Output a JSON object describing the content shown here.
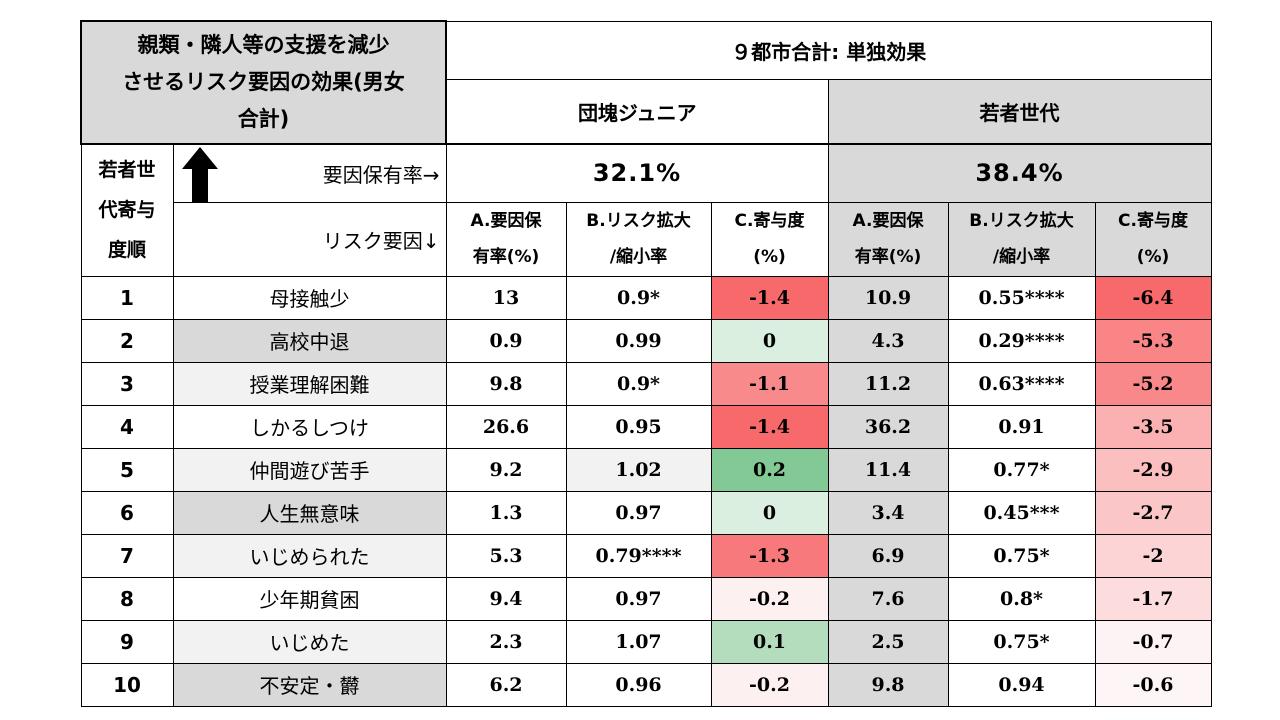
{
  "corner_title": [
    "親類・隣人等の支援を減少",
    "させるリスク要因の効果(男女",
    "合計)"
  ],
  "main_title": "９都市合計: 単独効果",
  "groups": [
    {
      "name": "団塊ジュニア",
      "rate": "32.1%"
    },
    {
      "name": "若者世代",
      "rate": "38.4%"
    }
  ],
  "side_label": [
    "若者世",
    "代寄与",
    "度順"
  ],
  "rate_label": "要因保有率→",
  "factor_label": "リスク要因↓",
  "col_headers": [
    {
      "a": "A.要因保",
      "b": "有率(%)"
    },
    {
      "a": "B.リスク拡大",
      "b": "/縮小率"
    },
    {
      "a": "C.寄与度",
      "b": "(%)"
    },
    {
      "a": "A.要因保",
      "b": "有率(%)"
    },
    {
      "a": "B.リスク拡大",
      "b": "/縮小率"
    },
    {
      "a": "C.寄与度",
      "b": "(%)"
    }
  ],
  "rows": [
    {
      "rank": "1",
      "factor": "母接触少",
      "v": [
        "13",
        "0.9*",
        "-1.4",
        "10.9",
        "0.55****",
        "-6.4"
      ]
    },
    {
      "rank": "2",
      "factor": "高校中退",
      "v": [
        "0.9",
        "0.99",
        "0",
        "4.3",
        "0.29****",
        "-5.3"
      ]
    },
    {
      "rank": "3",
      "factor": "授業理解困難",
      "v": [
        "9.8",
        "0.9*",
        "-1.1",
        "11.2",
        "0.63****",
        "-5.2"
      ]
    },
    {
      "rank": "4",
      "factor": "しかるしつけ",
      "v": [
        "26.6",
        "0.95",
        "-1.4",
        "36.2",
        "0.91",
        "-3.5"
      ]
    },
    {
      "rank": "5",
      "factor": "仲間遊び苦手",
      "v": [
        "9.2",
        "1.02",
        "0.2",
        "11.4",
        "0.77*",
        "-2.9"
      ]
    },
    {
      "rank": "6",
      "factor": "人生無意味",
      "v": [
        "1.3",
        "0.97",
        "0",
        "3.4",
        "0.45***",
        "-2.7"
      ]
    },
    {
      "rank": "7",
      "factor": "いじめられた",
      "v": [
        "5.3",
        "0.79****",
        "-1.3",
        "6.9",
        "0.75*",
        "-2"
      ]
    },
    {
      "rank": "8",
      "factor": "少年期貧困",
      "v": [
        "9.4",
        "0.97",
        "-0.2",
        "7.6",
        "0.8*",
        "-1.7"
      ]
    },
    {
      "rank": "9",
      "factor": "いじめた",
      "v": [
        "2.3",
        "1.07",
        "0.1",
        "2.5",
        "0.75*",
        "-0.7"
      ]
    },
    {
      "rank": "10",
      "factor": "不安定・欝",
      "v": [
        "6.2",
        "0.96",
        "-0.2",
        "9.8",
        "0.94",
        "-0.6"
      ]
    }
  ],
  "colors": {
    "header_gray": "#d9d9d9",
    "neg_strong": "#f8696b",
    "neg_light": "#fce4e4",
    "pos_strong": "#83c995",
    "pos_light": "#dbefe0"
  }
}
